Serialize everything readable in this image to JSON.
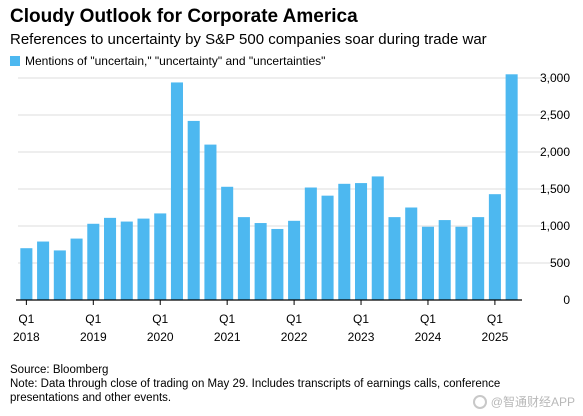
{
  "header": {
    "title": "Cloudy Outlook for Corporate America",
    "subtitle": "References to uncertainty by S&P 500 companies soar during trade war"
  },
  "colors": {
    "bar": "#4db8f0",
    "grid": "#dcdcdc",
    "axis": "#000000"
  },
  "chart_data": {
    "type": "bar",
    "title": "Cloudy Outlook for Corporate America",
    "subtitle": "References to uncertainty by S&P 500 companies soar during trade war",
    "xlabel": "",
    "ylabel": "",
    "ylim": [
      0,
      3000
    ],
    "yticks": [
      0,
      500,
      "1,000",
      "1,500",
      "2,000",
      "2,500",
      "3,000"
    ],
    "y_axis_side": "right",
    "grid": true,
    "legend_position": "top-left",
    "series": [
      {
        "name": "Mentions of \"uncertain,\" \"uncertainty\" and \"uncertainties\"",
        "values": [
          700,
          790,
          670,
          830,
          1030,
          1110,
          1060,
          1100,
          1170,
          2940,
          2420,
          2100,
          1530,
          1120,
          1040,
          960,
          1070,
          1520,
          1410,
          1570,
          1580,
          1670,
          1120,
          1250,
          990,
          1080,
          990,
          1120,
          1430,
          3050
        ]
      }
    ],
    "quarters": [
      "Q1 2018",
      "Q2 2018",
      "Q3 2018",
      "Q4 2018",
      "Q1 2019",
      "Q2 2019",
      "Q3 2019",
      "Q4 2019",
      "Q1 2020",
      "Q2 2020",
      "Q3 2020",
      "Q4 2020",
      "Q1 2021",
      "Q2 2021",
      "Q3 2021",
      "Q4 2021",
      "Q1 2022",
      "Q2 2022",
      "Q3 2022",
      "Q4 2022",
      "Q1 2023",
      "Q2 2023",
      "Q3 2023",
      "Q4 2023",
      "Q1 2024",
      "Q2 2024",
      "Q3 2024",
      "Q4 2024",
      "Q1 2025",
      "Q2 2025"
    ],
    "x_tick_labels": [
      {
        "index": 0,
        "q": "Q1",
        "year": "2018"
      },
      {
        "index": 4,
        "q": "Q1",
        "year": "2019"
      },
      {
        "index": 8,
        "q": "Q1",
        "year": "2020"
      },
      {
        "index": 12,
        "q": "Q1",
        "year": "2021"
      },
      {
        "index": 16,
        "q": "Q1",
        "year": "2022"
      },
      {
        "index": 20,
        "q": "Q1",
        "year": "2023"
      },
      {
        "index": 24,
        "q": "Q1",
        "year": "2024"
      },
      {
        "index": 28,
        "q": "Q1",
        "year": "2025"
      }
    ]
  },
  "footer": {
    "source": "Source: Bloomberg",
    "note": "Note: Data through close of trading on May 29. Includes transcripts of earnings calls, conference presentations and other events."
  },
  "watermark": {
    "text": "@智通财经APP"
  }
}
